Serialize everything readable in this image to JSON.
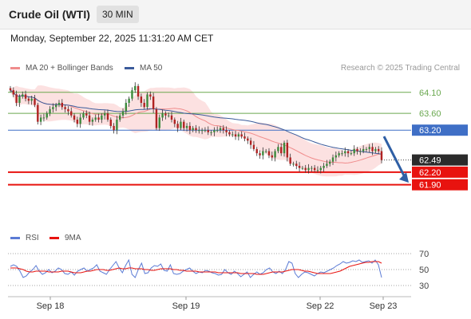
{
  "header": {
    "title": "Crude Oil (WTI)",
    "timeframe": "30 MIN"
  },
  "datetime": "Monday, September 22, 2025 11:31:20 AM CET",
  "credit": "Research © 2025 Trading Central",
  "legend_main": [
    {
      "label": "MA 20 + Bollinger Bands",
      "color": "#f08c8c"
    },
    {
      "label": "MA 50",
      "color": "#3b5b9b"
    }
  ],
  "legend_rsi": [
    {
      "label": "RSI",
      "color": "#5b7bd5"
    },
    {
      "label": "9MA",
      "color": "#e8130f"
    }
  ],
  "chart_data": [
    {
      "type": "candlestick",
      "title": "Crude Oil (WTI)",
      "timeframe": "30 MIN",
      "ylim": [
        61.4,
        64.4
      ],
      "levels": [
        {
          "value": 64.1,
          "label": "64.10",
          "kind": "resistance",
          "color": "#6aa84f"
        },
        {
          "value": 63.6,
          "label": "63.60",
          "kind": "resistance",
          "color": "#6aa84f"
        },
        {
          "value": 63.2,
          "label": "63.20",
          "kind": "pivot",
          "color": "#3f6fc6"
        },
        {
          "value": 62.49,
          "label": "62.49",
          "kind": "last",
          "color": "#222222"
        },
        {
          "value": 62.2,
          "label": "62.20",
          "kind": "support",
          "color": "#e8130f"
        },
        {
          "value": 61.9,
          "label": "61.90",
          "kind": "support",
          "color": "#e8130f"
        }
      ],
      "x_ticks": [
        "Sep 18",
        "Sep 19",
        "Sep 22",
        "Sep 23"
      ],
      "closes": [
        64.15,
        64.05,
        63.85,
        64.0,
        64.05,
        63.95,
        63.9,
        63.95,
        63.8,
        63.4,
        63.5,
        63.5,
        63.6,
        63.7,
        63.75,
        63.8,
        63.85,
        63.75,
        63.7,
        63.65,
        63.55,
        63.45,
        63.35,
        63.5,
        63.6,
        63.55,
        63.4,
        63.45,
        63.5,
        63.45,
        63.55,
        63.6,
        63.45,
        63.3,
        63.2,
        63.45,
        63.55,
        63.65,
        63.85,
        63.95,
        64.15,
        64.25,
        64.0,
        63.85,
        63.75,
        64.05,
        64.0,
        63.7,
        63.25,
        63.5,
        63.6,
        63.55,
        63.55,
        63.45,
        63.35,
        63.25,
        63.4,
        63.25,
        63.3,
        63.2,
        63.25,
        63.2,
        63.2,
        63.2,
        63.2,
        63.15,
        63.15,
        63.2,
        63.2,
        63.25,
        63.2,
        63.15,
        63.1,
        63.1,
        63.05,
        63.1,
        63.05,
        63.0,
        62.95,
        62.85,
        62.75,
        62.65,
        62.6,
        62.7,
        62.7,
        62.6,
        62.55,
        62.7,
        62.8,
        62.65,
        62.9,
        62.55,
        62.4,
        62.4,
        62.35,
        62.3,
        62.3,
        62.25,
        62.3,
        62.3,
        62.25,
        62.25,
        62.3,
        62.35,
        62.4,
        62.45,
        62.55,
        62.6,
        62.65,
        62.65,
        62.7,
        62.65,
        62.65,
        62.75,
        62.7,
        62.7,
        62.75,
        62.75,
        62.8,
        62.7,
        62.75,
        62.7,
        62.49
      ],
      "rsi": {
        "ylim": [
          20,
          80
        ],
        "ticks": [
          70,
          50,
          30
        ],
        "rsi_values": [
          54,
          56,
          54,
          48,
          40,
          42,
          47,
          50,
          55,
          48,
          44,
          46,
          50,
          46,
          48,
          52,
          50,
          45,
          44,
          47,
          43,
          48,
          50,
          52,
          48,
          50,
          52,
          56,
          48,
          46,
          44,
          50,
          55,
          60,
          52,
          46,
          55,
          62,
          44,
          40,
          50,
          58,
          45,
          46,
          52,
          55,
          54,
          57,
          49,
          48,
          56,
          45,
          44,
          45,
          48,
          50,
          52,
          48,
          45,
          47,
          46,
          49,
          48,
          46,
          45,
          43,
          44,
          50,
          46,
          44,
          48,
          45,
          41,
          44,
          47,
          40,
          44,
          47,
          44,
          46,
          50,
          52,
          47,
          45,
          48,
          45,
          50,
          60,
          58,
          45,
          40,
          44,
          47,
          46,
          44,
          42,
          45,
          47,
          46,
          48,
          50,
          52,
          55,
          57,
          60,
          58,
          59,
          61,
          60,
          62,
          59,
          60,
          61,
          58,
          62,
          56,
          40
        ],
        "ma9_values": [
          52,
          52,
          52,
          51,
          50,
          48,
          47,
          47,
          48,
          48,
          48,
          48,
          47,
          47,
          47,
          47,
          48,
          48,
          48,
          47,
          46,
          46,
          46,
          47,
          48,
          48,
          49,
          50,
          50,
          50,
          49,
          49,
          50,
          51,
          52,
          51,
          51,
          52,
          52,
          51,
          51,
          51,
          50,
          50,
          49,
          49,
          50,
          51,
          51,
          51,
          51,
          50,
          50,
          49,
          49,
          48,
          48,
          48,
          48,
          47,
          47,
          47,
          47,
          47,
          47,
          46,
          46,
          46,
          46,
          46,
          46,
          46,
          45,
          45,
          45,
          45,
          45,
          44,
          44,
          44,
          45,
          46,
          47,
          47,
          47,
          47,
          48,
          49,
          50,
          50,
          50,
          49,
          48,
          48,
          47,
          46,
          45,
          45,
          45,
          45,
          45,
          46,
          47,
          48,
          50,
          52,
          54,
          55,
          56,
          57,
          58,
          59,
          59,
          60,
          60,
          60,
          58
        ]
      }
    }
  ]
}
